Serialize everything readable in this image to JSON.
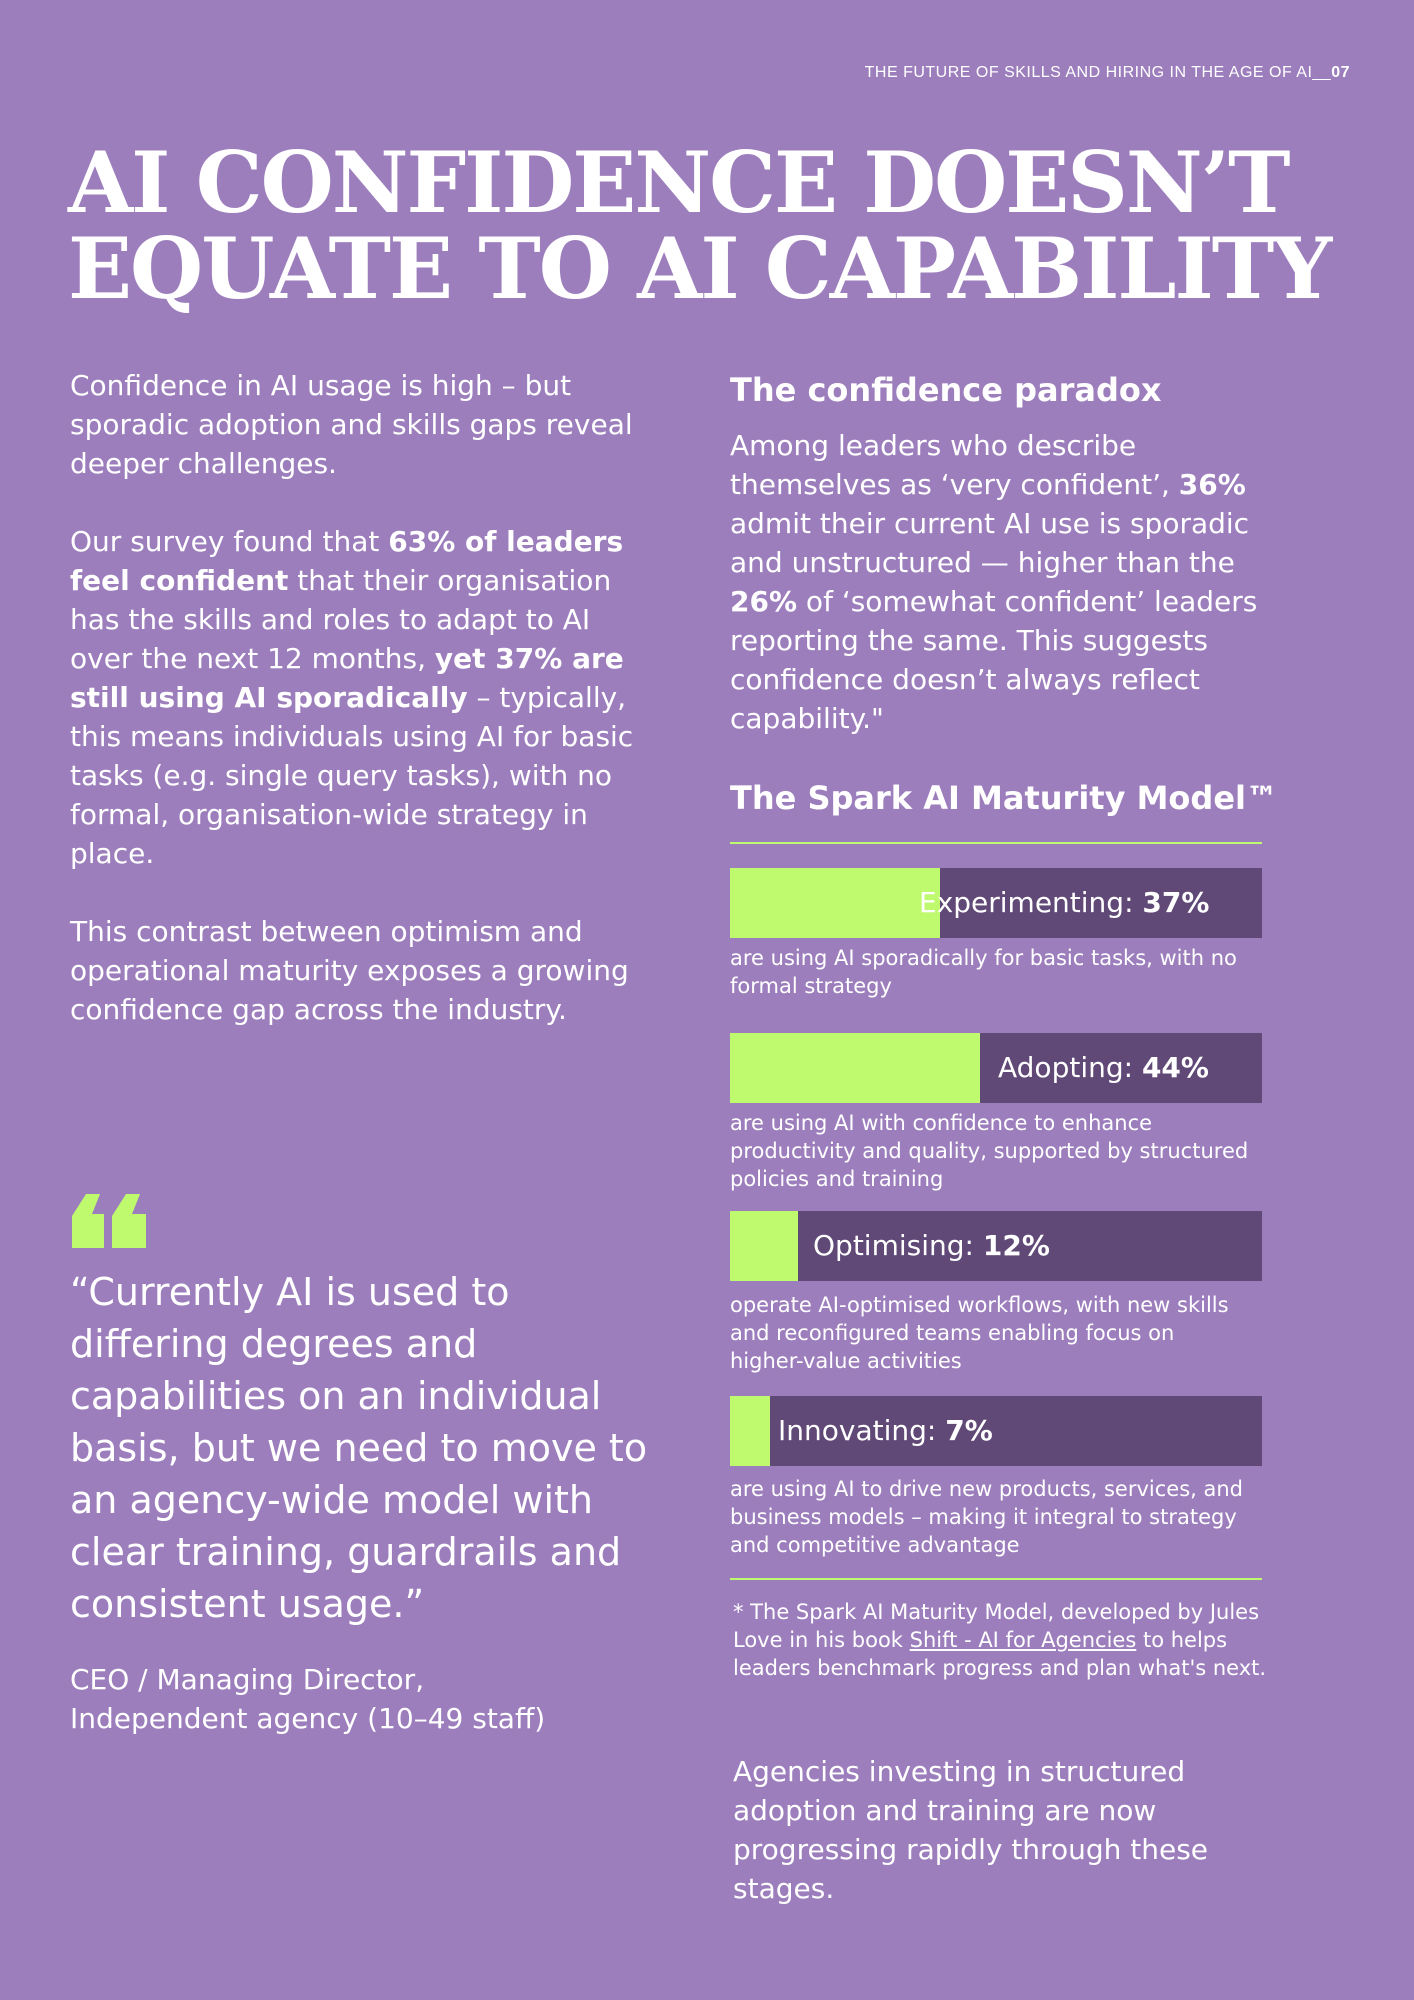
{
  "header": {
    "running_title": "THE FUTURE OF SKILLS AND HIRING IN THE AGE OF AI",
    "separator": "__",
    "page_number": "07"
  },
  "title": {
    "line1": "AI CONFIDENCE DOESN’T",
    "line2": "EQUATE TO AI CAPABILITY"
  },
  "left": {
    "intro": "Confidence in AI usage is high – but sporadic adoption and skills gaps reveal deeper challenges.",
    "survey": {
      "t1": "Our survey found that ",
      "b1": "63% of leaders feel confident",
      "t2": " that their organisation has the skills and roles to adapt to AI over the next 12 months, ",
      "b2": "yet 37% are still using AI sporadically",
      "t3": " – typically, this means individuals using AI for basic tasks (e.g. single query tasks), with no formal, organisation-wide strategy in place."
    },
    "contrast": "This contrast between optimism and operational maturity exposes a growing confidence gap across the industry."
  },
  "quote": {
    "text": "“Currently AI is used to differing degrees and capabilities on an individual basis, but we need to move to an agency-wide model with clear training, guardrails and consistent usage.”",
    "attribution_line1": "CEO / Managing Director,",
    "attribution_line2": "Independent agency (10–49 staff)"
  },
  "paradox": {
    "heading": "The confidence paradox",
    "t1": "Among leaders who describe themselves as ‘very confident’, ",
    "b1": "36%",
    "t2": " admit their current AI use is sporadic and unstructured — higher than the ",
    "b2": "26%",
    "t3": " of ‘somewhat confident’ leaders reporting the same. This suggests confidence doesn’t always reflect capability.\""
  },
  "model": {
    "heading": "The Spark AI Maturity Model™",
    "stages": [
      {
        "name": "Experimenting: ",
        "value_label": "37%",
        "value": 37,
        "desc": "are using AI sporadically for basic tasks, with no formal strategy"
      },
      {
        "name": "Adopting: ",
        "value_label": "44%",
        "value": 44,
        "desc": "are using AI with confidence to enhance productivity and quality, supported by structured policies and training"
      },
      {
        "name": "Optimising: ",
        "value_label": "12%",
        "value": 12,
        "desc": "operate AI-optimised workflows, with new skills and reconfigured teams enabling focus on higher-value activities"
      },
      {
        "name": "Innovating: ",
        "value_label": "7%",
        "value": 7,
        "desc": "are using AI to drive new products, services, and business models – making it integral to strategy and competitive advantage"
      }
    ],
    "colors": {
      "fill": "#bff96e",
      "track": "#604877",
      "background": "#9d7ebd"
    }
  },
  "footnote": {
    "t1": "* The Spark AI Maturity Model, developed by Jules Love in his book ",
    "link": "Shift - AI for Agencies",
    "t2": " to helps leaders benchmark progress and plan what's next."
  },
  "closing": "Agencies investing in structured adoption and training are now progressing rapidly through these stages."
}
